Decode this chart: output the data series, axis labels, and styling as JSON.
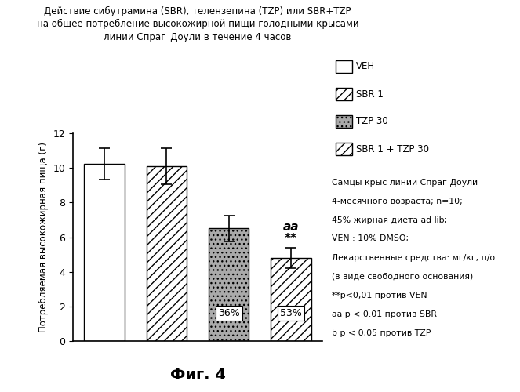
{
  "title_line1": "Действие сибутрамина (SBR), телензепина (TZP) или SBR+TZP",
  "title_line2": "на общее потребление высокожирной пищи голодными крысами",
  "title_line3": "линии Спраг_Доули в течение 4 часов",
  "categories": [
    "VEH",
    "SBR 1",
    "TZP 30",
    "SBR 1 + TZP 30"
  ],
  "values": [
    10.25,
    10.1,
    6.5,
    4.8
  ],
  "errors": [
    0.9,
    1.05,
    0.75,
    0.6
  ],
  "bar_colors": [
    "#ffffff",
    "#ffffff",
    "#aaaaaa",
    "#ffffff"
  ],
  "bar_hatches": [
    null,
    "///",
    "...",
    "///"
  ],
  "percentages": [
    null,
    null,
    "36%",
    "53%"
  ],
  "ylabel": "Потребляемая высокожирная пища (г)",
  "ylim": [
    0,
    12
  ],
  "yticks": [
    0,
    2,
    4,
    6,
    8,
    10,
    12
  ],
  "legend_labels": [
    "VEH",
    "SBR 1",
    "TZP 30",
    "SBR 1 + TZP 30"
  ],
  "legend_hatches": [
    null,
    "///",
    "...",
    "///"
  ],
  "legend_facecolors": [
    "#ffffff",
    "#ffffff",
    "#aaaaaa",
    "#ffffff"
  ],
  "note_line1": "Самцы крыс линии Спраг-Доули",
  "note_line2": "4-месячного возраста; n=10;",
  "note_line3": "45% жирная диета ad lib;",
  "note_line4": "VEN : 10% DMSO;",
  "note_line5": "Лекарственные средства: мг/кг, п/о",
  "note_line6": "(в виде свободного основания)",
  "note_line7": "**p<0,01 против VEN",
  "note_line8": "aa p < 0.01 против SBR",
  "note_line9": "b p < 0,05 против TZP",
  "fig_label": "Фиг. 4",
  "background_color": "#ffffff",
  "edge_color": "#000000"
}
